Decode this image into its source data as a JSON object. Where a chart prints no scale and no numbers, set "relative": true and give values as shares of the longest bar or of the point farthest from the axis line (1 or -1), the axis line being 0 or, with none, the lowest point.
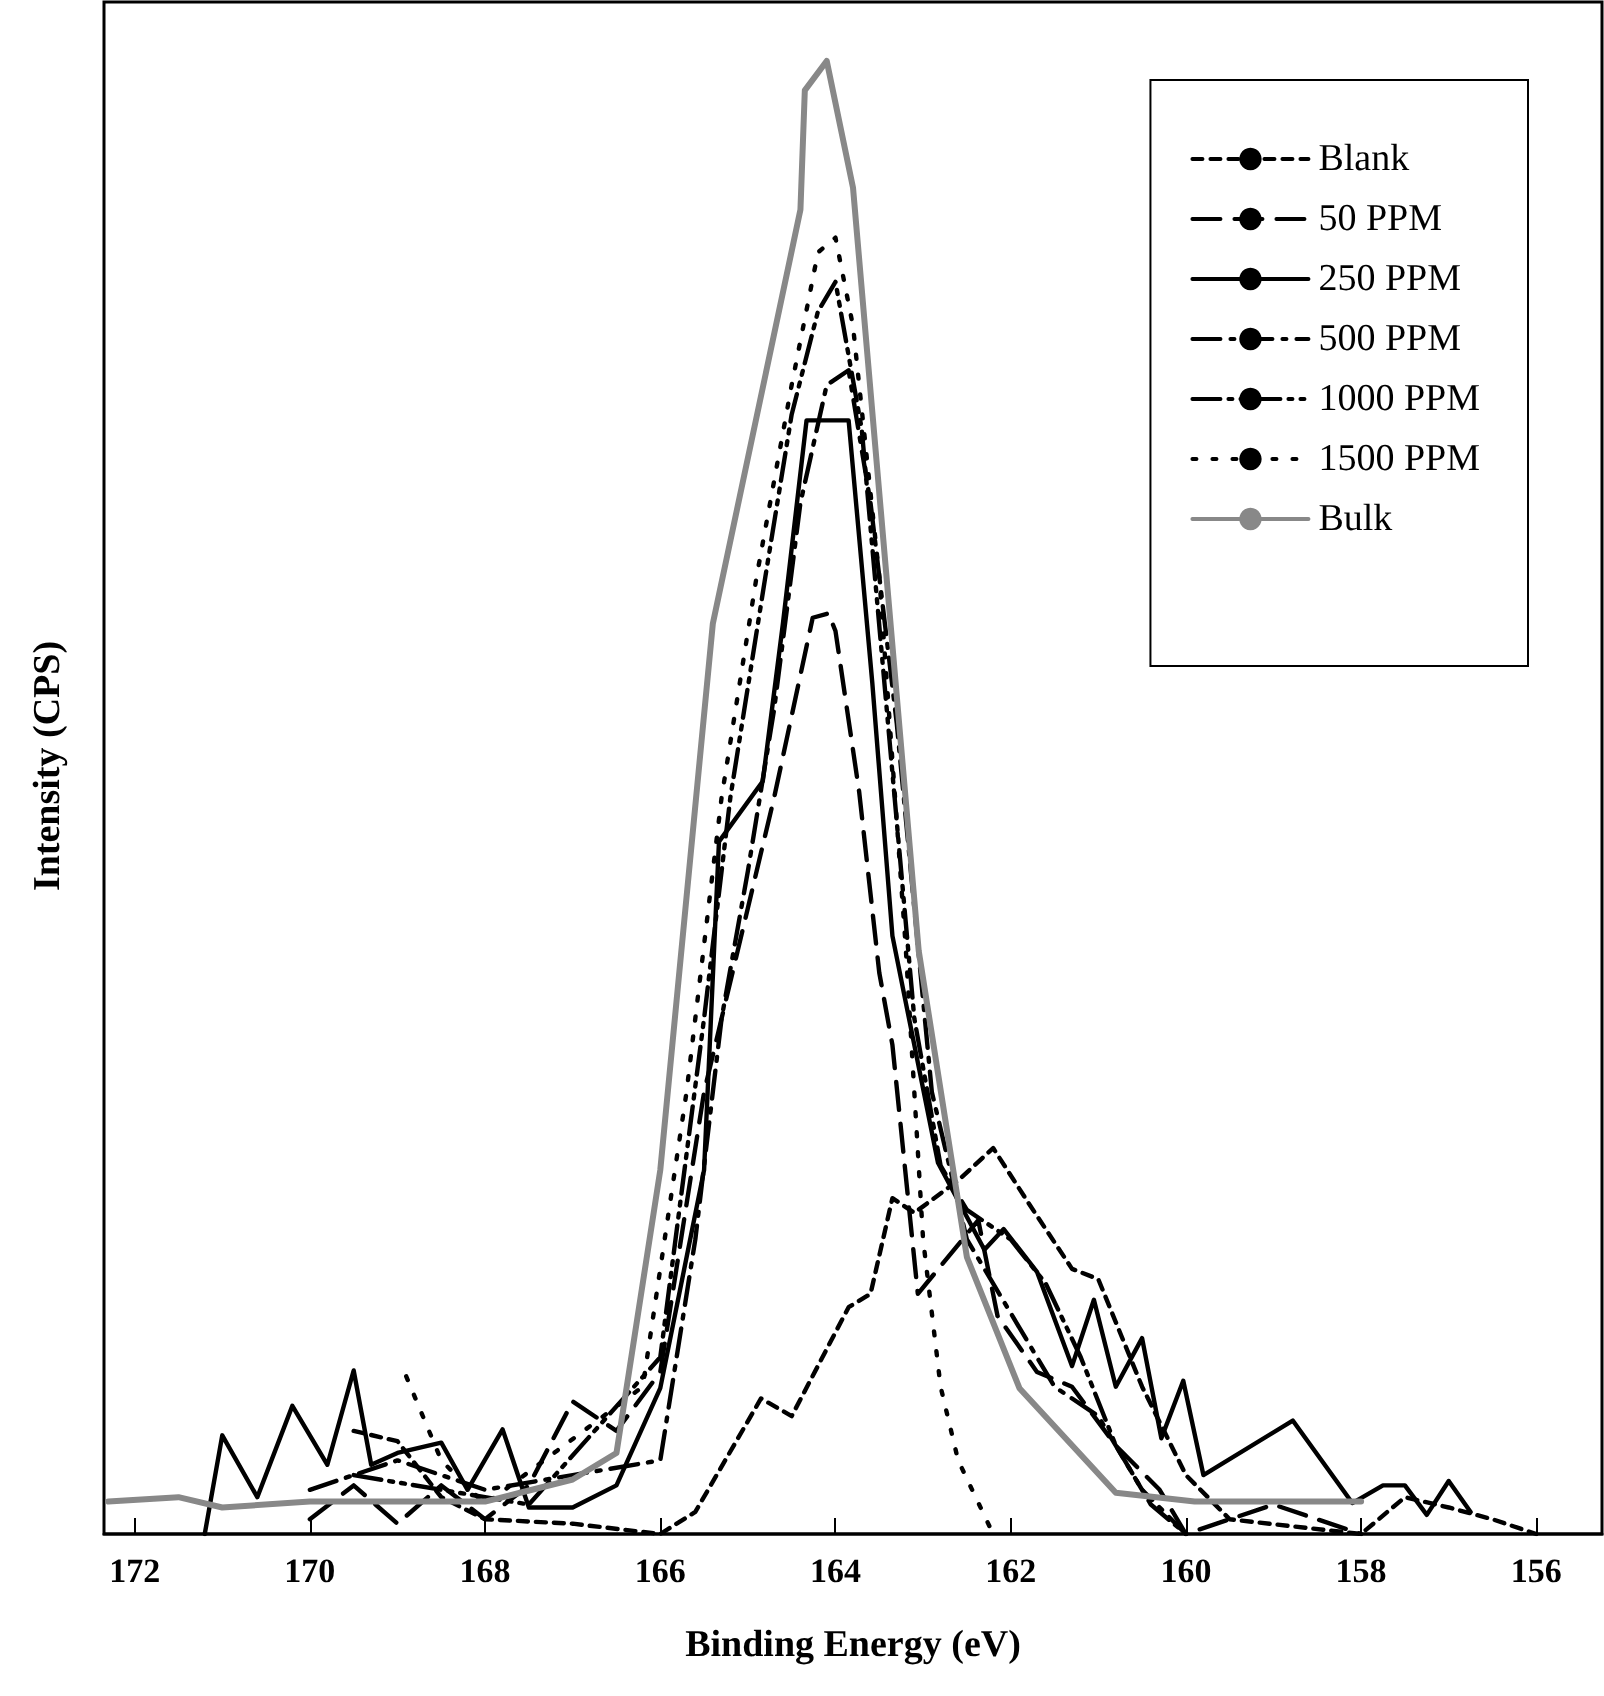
{
  "chart_data": {
    "type": "line",
    "xlabel": "Binding Energy (eV)",
    "ylabel": "Intensity (CPS)",
    "relative": true,
    "xlim": [
      172.35,
      155.25
    ],
    "xticks": [
      172,
      170,
      168,
      166,
      164,
      162,
      160,
      158,
      156
    ],
    "grid": false,
    "legend": "top right",
    "marker": "none",
    "series": [
      {
        "name": "Blank",
        "color": "#000000",
        "line_style": "dashed",
        "x": [
          169.5,
          169,
          168.5,
          168,
          167,
          166,
          165.6,
          164.85,
          164.5,
          163.85,
          163.6,
          163.35,
          163.1,
          162.6,
          162.2,
          161.8,
          161.3,
          161,
          160.5,
          160,
          159.5,
          158,
          157.5,
          157,
          156.5,
          156
        ],
        "values": [
          0.07,
          0.063,
          0.025,
          0.01,
          0.007,
          0,
          0.015,
          0.092,
          0.08,
          0.154,
          0.163,
          0.228,
          0.218,
          0.24,
          0.262,
          0.225,
          0.18,
          0.173,
          0.1,
          0.04,
          0.01,
          0,
          0.025,
          0.018,
          0.01,
          0
        ]
      },
      {
        "name": "50 PPM",
        "color": "#000000",
        "line_style": "longdashed",
        "x": [
          170,
          169.5,
          169,
          168.5,
          168,
          167.5,
          167,
          166.5,
          166,
          165.5,
          165.1,
          164.7,
          164.26,
          164.08,
          164,
          163.73,
          163.5,
          163.35,
          163.06,
          162.37,
          162.15,
          161.7,
          161.3,
          160.8,
          160.3,
          160,
          159,
          158
        ],
        "values": [
          0.01,
          0.033,
          0.007,
          0.033,
          0.01,
          0.033,
          0.09,
          0.07,
          0.11,
          0.3,
          0.4,
          0.5,
          0.622,
          0.625,
          0.613,
          0.504,
          0.381,
          0.332,
          0.163,
          0.213,
          0.148,
          0.11,
          0.1,
          0.06,
          0.03,
          0,
          0.02,
          0
        ]
      },
      {
        "name": "250 PPM",
        "color": "#000000",
        "line_style": "solid",
        "x": [
          171.2,
          171,
          170.6,
          170.2,
          169.8,
          169.5,
          169.3,
          169,
          168.5,
          168.2,
          167.8,
          167.5,
          167,
          166.5,
          166,
          165.5,
          165.33,
          164.83,
          164.6,
          164.33,
          163.85,
          163.58,
          163.35,
          162.83,
          162.3,
          162.08,
          161.7,
          161.3,
          161.05,
          160.8,
          160.5,
          160.28,
          160.03,
          159.8,
          158.78,
          158.1,
          157.75,
          157.5,
          157.25,
          157,
          156.75
        ],
        "values": [
          0,
          0.067,
          0.025,
          0.087,
          0.047,
          0.111,
          0.047,
          0.055,
          0.062,
          0.03,
          0.071,
          0.018,
          0.018,
          0.033,
          0.099,
          0.247,
          0.47,
          0.511,
          0.618,
          0.756,
          0.756,
          0.578,
          0.406,
          0.252,
          0.193,
          0.207,
          0.178,
          0.114,
          0.159,
          0.1,
          0.133,
          0.065,
          0.104,
          0.04,
          0.077,
          0.021,
          0.033,
          0.033,
          0.013,
          0.036,
          0.015
        ]
      },
      {
        "name": "500 PPM",
        "color": "#000000",
        "line_style": "dashdot",
        "x": [
          170,
          169,
          168,
          167,
          166,
          165.6,
          165.3,
          165,
          164.7,
          164.4,
          164.1,
          163.85,
          163.6,
          163.3,
          162.9,
          162.5,
          162,
          161.5,
          161,
          160.5,
          160
        ],
        "values": [
          0.03,
          0.05,
          0.03,
          0.04,
          0.05,
          0.2,
          0.35,
          0.45,
          0.56,
          0.7,
          0.78,
          0.79,
          0.7,
          0.55,
          0.3,
          0.2,
          0.15,
          0.1,
          0.08,
          0.03,
          0
        ]
      },
      {
        "name": "1000 PPM",
        "color": "#000000",
        "line_style": "dashdotdot",
        "x": [
          169.5,
          168.5,
          167.5,
          166,
          165.5,
          165.2,
          164.8,
          164.5,
          164.2,
          164,
          163.7,
          163.4,
          163.1,
          162.8,
          162.5,
          162,
          161.6,
          161.2,
          160.8,
          160.4,
          160
        ],
        "values": [
          0.04,
          0.03,
          0.02,
          0.12,
          0.35,
          0.5,
          0.65,
          0.76,
          0.83,
          0.85,
          0.75,
          0.55,
          0.35,
          0.25,
          0.22,
          0.2,
          0.17,
          0.12,
          0.06,
          0.02,
          0
        ]
      },
      {
        "name": "1500 PPM",
        "color": "#000000",
        "line_style": "dotted",
        "x": [
          168.9,
          168.5,
          168,
          166.2,
          165.7,
          165.3,
          164.9,
          164.5,
          164.2,
          164,
          163.8,
          163.5,
          163.2,
          163,
          162.8,
          162.6,
          162.2
        ],
        "values": [
          0.107,
          0.05,
          0.02,
          0.1,
          0.3,
          0.5,
          0.65,
          0.78,
          0.87,
          0.88,
          0.82,
          0.65,
          0.4,
          0.2,
          0.1,
          0.05,
          0
        ]
      },
      {
        "name": "Bulk",
        "color": "#888888",
        "line_style": "solid",
        "x": [
          172.3,
          171.5,
          171,
          170,
          169,
          168,
          167.6,
          167,
          166.5,
          166,
          165.4,
          164.4,
          164.35,
          164.1,
          163.8,
          163.05,
          162.5,
          161.9,
          160.8,
          159.9,
          158
        ],
        "values": [
          0.022,
          0.025,
          0.018,
          0.022,
          0.022,
          0.022,
          0.028,
          0.037,
          0.055,
          0.247,
          0.618,
          0.899,
          0.98,
          1,
          0.914,
          0.396,
          0.188,
          0.099,
          0.028,
          0.022,
          0.022
        ]
      }
    ]
  }
}
